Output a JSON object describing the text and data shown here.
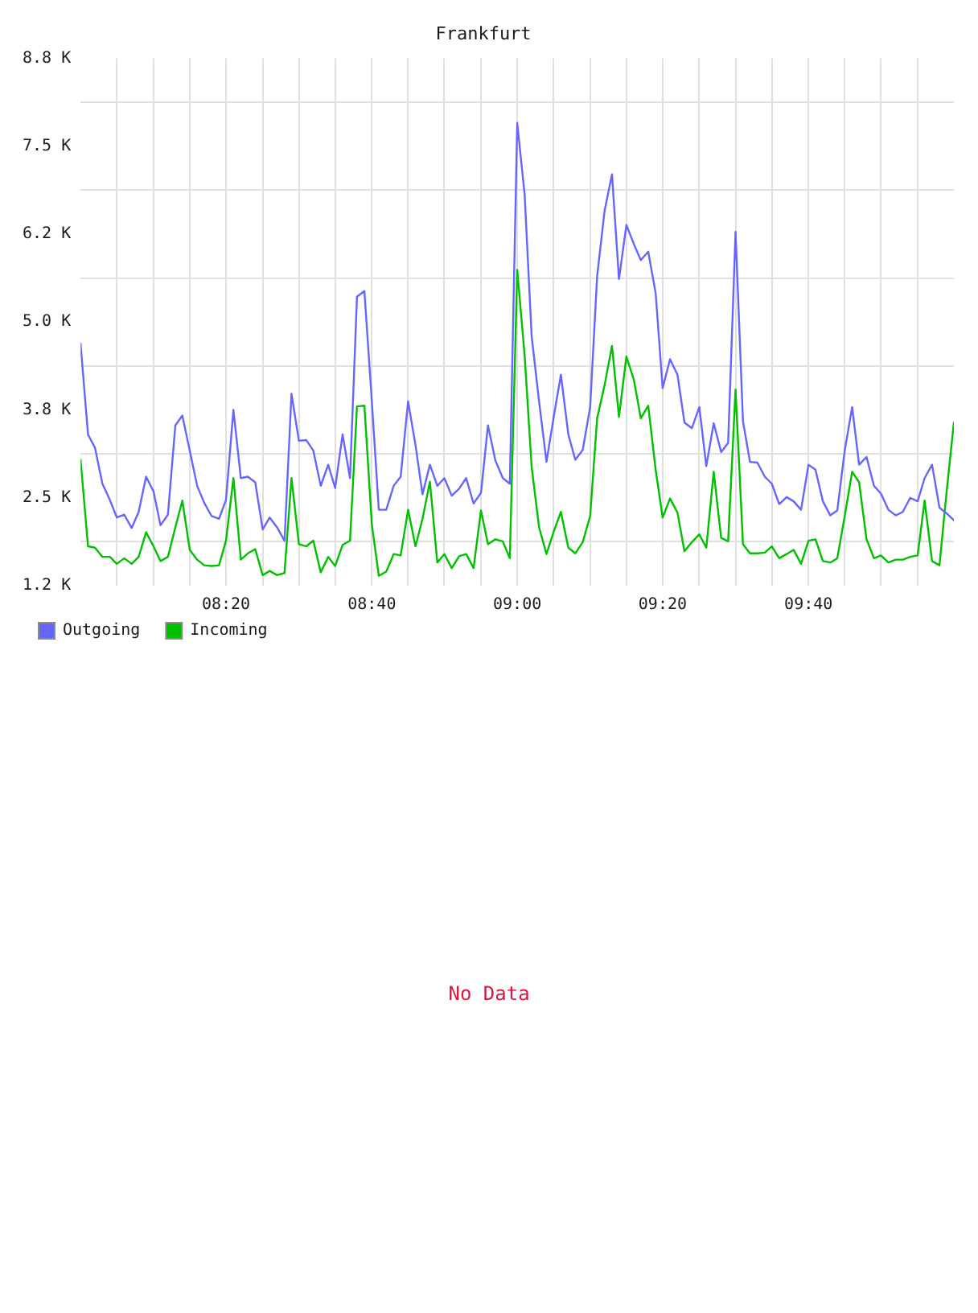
{
  "chart_data": {
    "type": "line",
    "title": "Frankfurt",
    "x": [
      8,
      8.017,
      8.033,
      8.05,
      8.067,
      8.083,
      8.1,
      8.117,
      8.133,
      8.15,
      8.167,
      8.183,
      8.2,
      8.217,
      8.233,
      8.25,
      8.267,
      8.283,
      8.3,
      8.317,
      8.333,
      8.35,
      8.367,
      8.383,
      8.4,
      8.417,
      8.433,
      8.45,
      8.467,
      8.483,
      8.5,
      8.517,
      8.533,
      8.55,
      8.567,
      8.583,
      8.6,
      8.617,
      8.633,
      8.65,
      8.667,
      8.683,
      8.7,
      8.717,
      8.733,
      8.75,
      8.767,
      8.783,
      8.8,
      8.817,
      8.833,
      8.85,
      8.867,
      8.883,
      8.9,
      8.917,
      8.933,
      8.95,
      8.967,
      8.983,
      9,
      9.017,
      9.033,
      9.05,
      9.067,
      9.083,
      9.1,
      9.117,
      9.133,
      9.15,
      9.167,
      9.183,
      9.2,
      9.217,
      9.233,
      9.25,
      9.267,
      9.283,
      9.3,
      9.317,
      9.333,
      9.35,
      9.367,
      9.383,
      9.4,
      9.417,
      9.433,
      9.45,
      9.467,
      9.483,
      9.5,
      9.517,
      9.533,
      9.55,
      9.567,
      9.583,
      9.6,
      9.617,
      9.633,
      9.65,
      9.667,
      9.683,
      9.7,
      9.717,
      9.733,
      9.75,
      9.767,
      9.783,
      9.8,
      9.817,
      9.833,
      9.85,
      9.867,
      9.883,
      9.9,
      9.917,
      9.933,
      9.95,
      9.967,
      9.983,
      10
    ],
    "xlim": [
      8,
      10
    ],
    "xticks": [
      {
        "value": 8.083,
        "label": null
      },
      {
        "value": 8.167,
        "label": null
      },
      {
        "value": 8.25,
        "label": null
      },
      {
        "value": 8.333,
        "label": "08:20"
      },
      {
        "value": 8.417,
        "label": null
      },
      {
        "value": 8.5,
        "label": null
      },
      {
        "value": 8.583,
        "label": null
      },
      {
        "value": 8.667,
        "label": "08:40"
      },
      {
        "value": 8.75,
        "label": null
      },
      {
        "value": 8.833,
        "label": null
      },
      {
        "value": 8.917,
        "label": null
      },
      {
        "value": 9,
        "label": "09:00"
      },
      {
        "value": 9.083,
        "label": null
      },
      {
        "value": 9.167,
        "label": null
      },
      {
        "value": 9.25,
        "label": null
      },
      {
        "value": 9.333,
        "label": "09:20"
      },
      {
        "value": 9.417,
        "label": null
      },
      {
        "value": 9.5,
        "label": null
      },
      {
        "value": 9.583,
        "label": null
      },
      {
        "value": 9.667,
        "label": "09:40"
      },
      {
        "value": 9.75,
        "label": null
      },
      {
        "value": 9.833,
        "label": null
      },
      {
        "value": 9.917,
        "label": null
      }
    ],
    "ylim": [
      1.25,
      8.75
    ],
    "yticks": [
      {
        "value": 1.25,
        "label": "1.2 K"
      },
      {
        "value": 1.875,
        "label": null
      },
      {
        "value": 2.5,
        "label": "2.5 K"
      },
      {
        "value": 3.125,
        "label": null
      },
      {
        "value": 3.75,
        "label": "3.8 K"
      },
      {
        "value": 4.375,
        "label": null
      },
      {
        "value": 5,
        "label": "5.0 K"
      },
      {
        "value": 5.625,
        "label": null
      },
      {
        "value": 6.25,
        "label": "6.2 K"
      },
      {
        "value": 6.875,
        "label": null
      },
      {
        "value": 7.5,
        "label": "7.5 K"
      },
      {
        "value": 8.125,
        "label": null
      },
      {
        "value": 8.75,
        "label": "8.8 K"
      }
    ],
    "series": [
      {
        "name": "Outgoing",
        "color": "#6666ff",
        "values": [
          4.69,
          3.4,
          3.21,
          2.7,
          2.47,
          2.22,
          2.26,
          2.07,
          2.3,
          2.8,
          2.59,
          2.11,
          2.26,
          3.53,
          3.67,
          3.17,
          2.67,
          2.43,
          2.24,
          2.2,
          2.47,
          3.75,
          2.78,
          2.8,
          2.72,
          2.05,
          2.22,
          2.08,
          1.89,
          3.98,
          3.31,
          3.32,
          3.17,
          2.67,
          2.97,
          2.64,
          3.4,
          2.78,
          5.36,
          5.44,
          3.87,
          2.33,
          2.33,
          2.67,
          2.8,
          3.87,
          3.25,
          2.55,
          2.97,
          2.67,
          2.78,
          2.53,
          2.63,
          2.78,
          2.42,
          2.57,
          3.53,
          3.03,
          2.78,
          2.7,
          7.83,
          6.81,
          4.8,
          3.87,
          3.01,
          3.63,
          4.25,
          3.4,
          3.04,
          3.18,
          3.79,
          5.65,
          6.58,
          7.1,
          5.61,
          6.38,
          6.11,
          5.88,
          6.0,
          5.41,
          4.06,
          4.47,
          4.25,
          3.57,
          3.49,
          3.79,
          2.95,
          3.56,
          3.15,
          3.28,
          6.28,
          3.59,
          3.01,
          3.0,
          2.8,
          2.7,
          2.41,
          2.51,
          2.45,
          2.33,
          2.97,
          2.9,
          2.45,
          2.25,
          2.32,
          3.17,
          3.79,
          2.97,
          3.08,
          2.67,
          2.56,
          2.33,
          2.25,
          2.3,
          2.5,
          2.45,
          2.78,
          2.97,
          2.36,
          2.28,
          2.18
        ]
      },
      {
        "name": "Incoming",
        "color": "#00c000",
        "values": [
          3.04,
          1.81,
          1.79,
          1.66,
          1.66,
          1.56,
          1.64,
          1.56,
          1.66,
          2.01,
          1.81,
          1.6,
          1.66,
          2.08,
          2.46,
          1.76,
          1.62,
          1.54,
          1.53,
          1.54,
          1.89,
          2.78,
          1.62,
          1.71,
          1.77,
          1.4,
          1.46,
          1.4,
          1.43,
          2.78,
          1.84,
          1.81,
          1.89,
          1.44,
          1.66,
          1.53,
          1.83,
          1.89,
          3.8,
          3.81,
          2.12,
          1.39,
          1.45,
          1.7,
          1.68,
          2.33,
          1.81,
          2.2,
          2.73,
          1.58,
          1.7,
          1.5,
          1.67,
          1.7,
          1.5,
          2.32,
          1.84,
          1.91,
          1.88,
          1.64,
          5.74,
          4.52,
          2.94,
          2.08,
          1.7,
          2.01,
          2.3,
          1.79,
          1.71,
          1.87,
          2.24,
          3.63,
          4.1,
          4.66,
          3.65,
          4.51,
          4.18,
          3.63,
          3.81,
          2.9,
          2.22,
          2.49,
          2.29,
          1.74,
          1.87,
          1.98,
          1.79,
          2.87,
          1.93,
          1.88,
          4.04,
          1.84,
          1.71,
          1.71,
          1.72,
          1.81,
          1.64,
          1.7,
          1.76,
          1.56,
          1.89,
          1.91,
          1.6,
          1.58,
          1.64,
          2.24,
          2.87,
          2.72,
          1.91,
          1.64,
          1.68,
          1.58,
          1.62,
          1.62,
          1.66,
          1.68,
          2.46,
          1.6,
          1.54,
          2.56,
          3.57
        ]
      }
    ],
    "grid": true,
    "legend": "bottom left",
    "annotations": [
      "No Data"
    ]
  }
}
